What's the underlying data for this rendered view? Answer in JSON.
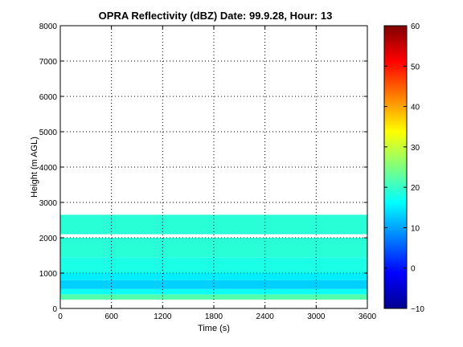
{
  "chart_data": {
    "type": "heatmap",
    "title": "OPRA Reflectivity (dBZ)  Date: 99.9.28, Hour: 13",
    "xlabel": "Time (s)",
    "ylabel": "Height (m AGL)",
    "xlim": [
      0,
      3600
    ],
    "ylim": [
      0,
      8000
    ],
    "x_ticks": [
      0,
      600,
      1200,
      1800,
      2400,
      3000,
      3600
    ],
    "y_ticks": [
      0,
      1000,
      2000,
      3000,
      4000,
      5000,
      6000,
      7000,
      8000
    ],
    "grid": true,
    "colorbar": {
      "range": [
        -10,
        60
      ],
      "ticks": [
        -10,
        0,
        10,
        20,
        30,
        40,
        50,
        60
      ],
      "colormap": "jet"
    },
    "value_profile": [
      {
        "height_range": [
          250,
          400
        ],
        "dbz": 22
      },
      {
        "height_range": [
          400,
          550
        ],
        "dbz": 17
      },
      {
        "height_range": [
          550,
          800
        ],
        "dbz": 13
      },
      {
        "height_range": [
          800,
          1000
        ],
        "dbz": 15
      },
      {
        "height_range": [
          1000,
          1450
        ],
        "dbz": 18
      },
      {
        "height_range": [
          1450,
          2000
        ],
        "dbz": 19
      },
      {
        "height_range": [
          2100,
          2650
        ],
        "dbz": 19
      }
    ]
  }
}
